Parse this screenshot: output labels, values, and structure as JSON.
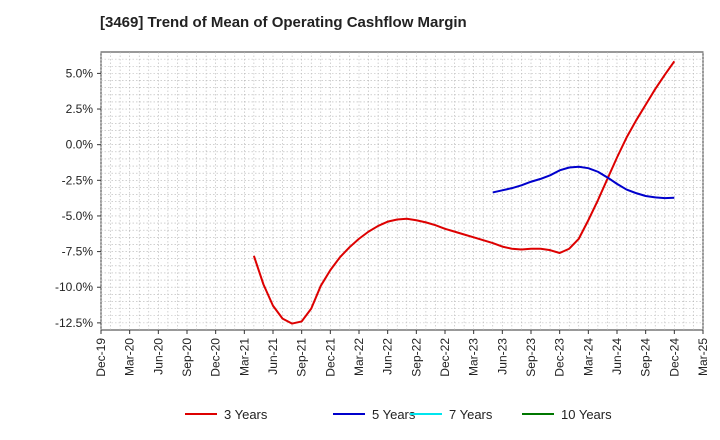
{
  "chart_data": {
    "type": "line",
    "title": "[3469]  Trend of Mean of Operating Cashflow Margin",
    "xlabel": "",
    "ylabel": "",
    "x_ticks": [
      "Dec-19",
      "Mar-20",
      "Jun-20",
      "Sep-20",
      "Dec-20",
      "Mar-21",
      "Jun-21",
      "Sep-21",
      "Dec-21",
      "Mar-22",
      "Jun-22",
      "Sep-22",
      "Dec-22",
      "Mar-23",
      "Jun-23",
      "Sep-23",
      "Dec-23",
      "Mar-24",
      "Jun-24",
      "Sep-24",
      "Dec-24",
      "Mar-25"
    ],
    "y_ticks": [
      5.0,
      2.5,
      0.0,
      -2.5,
      -5.0,
      -7.5,
      -10.0,
      -12.5
    ],
    "y_tick_labels": [
      "5.0%",
      "2.5%",
      "0.0%",
      "-2.5%",
      "-5.0%",
      "-7.5%",
      "-10.0%",
      "-12.5%"
    ],
    "ylim": [
      -13.0,
      6.5
    ],
    "grid": true,
    "legend_position": "bottom",
    "series": [
      {
        "name": "3 Years",
        "color": "#dd0000",
        "points": [
          [
            "Apr-21",
            -7.8
          ],
          [
            "May-21",
            -9.8
          ],
          [
            "Jun-21",
            -11.3
          ],
          [
            "Jul-21",
            -12.2
          ],
          [
            "Aug-21",
            -12.55
          ],
          [
            "Sep-21",
            -12.4
          ],
          [
            "Oct-21",
            -11.5
          ],
          [
            "Nov-21",
            -9.9
          ],
          [
            "Dec-21",
            -8.8
          ],
          [
            "Jan-22",
            -7.9
          ],
          [
            "Feb-22",
            -7.2
          ],
          [
            "Mar-22",
            -6.6
          ],
          [
            "Apr-22",
            -6.1
          ],
          [
            "May-22",
            -5.7
          ],
          [
            "Jun-22",
            -5.4
          ],
          [
            "Jul-22",
            -5.25
          ],
          [
            "Aug-22",
            -5.2
          ],
          [
            "Sep-22",
            -5.3
          ],
          [
            "Oct-22",
            -5.45
          ],
          [
            "Nov-22",
            -5.65
          ],
          [
            "Dec-22",
            -5.9
          ],
          [
            "Jan-23",
            -6.1
          ],
          [
            "Feb-23",
            -6.3
          ],
          [
            "Mar-23",
            -6.5
          ],
          [
            "Apr-23",
            -6.7
          ],
          [
            "May-23",
            -6.9
          ],
          [
            "Jun-23",
            -7.15
          ],
          [
            "Jul-23",
            -7.3
          ],
          [
            "Aug-23",
            -7.35
          ],
          [
            "Sep-23",
            -7.3
          ],
          [
            "Oct-23",
            -7.3
          ],
          [
            "Nov-23",
            -7.4
          ],
          [
            "Dec-23",
            -7.6
          ],
          [
            "Jan-24",
            -7.3
          ],
          [
            "Feb-24",
            -6.6
          ],
          [
            "Mar-24",
            -5.3
          ],
          [
            "Apr-24",
            -3.9
          ],
          [
            "May-24",
            -2.4
          ],
          [
            "Jun-24",
            -0.9
          ],
          [
            "Jul-24",
            0.5
          ],
          [
            "Aug-24",
            1.7
          ],
          [
            "Sep-24",
            2.8
          ],
          [
            "Oct-24",
            3.9
          ],
          [
            "Nov-24",
            4.9
          ],
          [
            "Dec-24",
            5.85
          ]
        ]
      },
      {
        "name": "5 Years",
        "color": "#0000cc",
        "points": [
          [
            "May-23",
            -3.35
          ],
          [
            "Jun-23",
            -3.2
          ],
          [
            "Jul-23",
            -3.05
          ],
          [
            "Aug-23",
            -2.85
          ],
          [
            "Sep-23",
            -2.6
          ],
          [
            "Oct-23",
            -2.4
          ],
          [
            "Nov-23",
            -2.15
          ],
          [
            "Dec-23",
            -1.8
          ],
          [
            "Jan-24",
            -1.6
          ],
          [
            "Feb-24",
            -1.55
          ],
          [
            "Mar-24",
            -1.65
          ],
          [
            "Apr-24",
            -1.9
          ],
          [
            "May-24",
            -2.3
          ],
          [
            "Jun-24",
            -2.75
          ],
          [
            "Jul-24",
            -3.15
          ],
          [
            "Aug-24",
            -3.4
          ],
          [
            "Sep-24",
            -3.6
          ],
          [
            "Oct-24",
            -3.7
          ],
          [
            "Nov-24",
            -3.75
          ],
          [
            "Dec-24",
            -3.72
          ]
        ]
      },
      {
        "name": "7 Years",
        "color": "#00e5ee",
        "points": []
      },
      {
        "name": "10 Years",
        "color": "#007700",
        "points": []
      }
    ]
  }
}
